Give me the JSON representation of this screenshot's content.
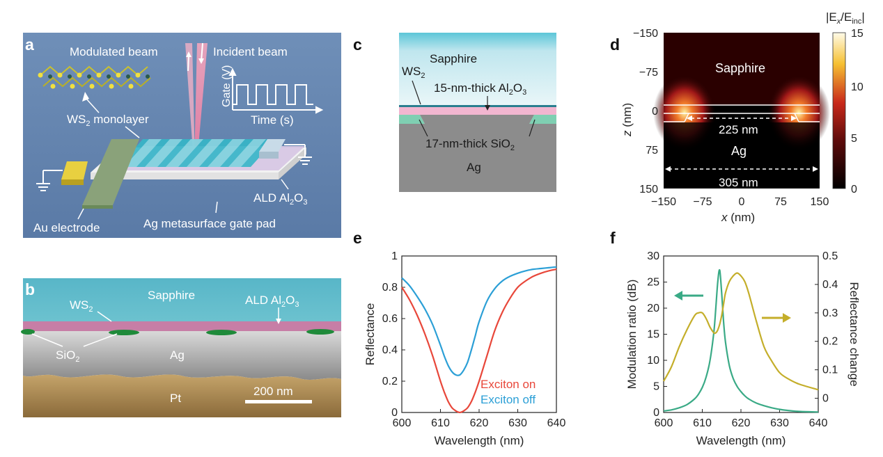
{
  "panels": {
    "a": {
      "letter": "a",
      "modulated_beam": "Modulated beam",
      "incident_beam": "Incident beam",
      "gate_axis": "Gate (V)",
      "time_axis": "Time (s)",
      "ws2": "WS",
      "ws2_rest": " monolayer",
      "ald_pre": "ALD Al",
      "ald_mid": "O",
      "au_electrode": "Au electrode",
      "ag_pad": "Ag metasurface gate pad"
    },
    "b": {
      "letter": "b",
      "sapphire": "Sapphire",
      "ws2": "WS",
      "ald_pre": "ALD Al",
      "ald_mid": "O",
      "sio2": "SiO",
      "ag": "Ag",
      "pt": "Pt",
      "scale_bar": "200 nm"
    },
    "c": {
      "letter": "c",
      "sapphire": "Sapphire",
      "ws2": "WS",
      "al2o3_pre": "15-nm-thick Al",
      "al2o3_mid": "O",
      "sio2_pre": "17-nm-thick SiO",
      "ag": "Ag"
    },
    "d": {
      "letter": "d",
      "sapphire": "Sapphire",
      "ag": "Ag",
      "dim_inner": "225 nm",
      "dim_outer": "305 nm",
      "colorbar_title_pre": "|E",
      "colorbar_title_mid": "/E",
      "colorbar_title_sub1": "x",
      "colorbar_title_sub2": "inc",
      "colorbar_title_end": "|",
      "colorbar_ticks": [
        "15",
        "10",
        "5",
        "0"
      ],
      "x_ticks": [
        "−150",
        "−75",
        "0",
        "75",
        "150"
      ],
      "z_ticks": [
        "−150",
        "−75",
        "0",
        "75",
        "150"
      ],
      "xlabel_var": "x",
      "xlabel_unit": " (nm)",
      "zlabel_var": "z",
      "zlabel_unit": " (nm)"
    },
    "e": {
      "letter": "e",
      "legend_on": "Exciton on",
      "legend_off": "Exciton off",
      "on_color": "#e8473a",
      "off_color": "#2b9fd6"
    },
    "f": {
      "letter": "f",
      "mod_color": "#3aaa86",
      "refl_color": "#c4ae2a"
    }
  },
  "chart_data": [
    {
      "panel": "e",
      "type": "line",
      "xlabel": "Wavelength (nm)",
      "ylabel": "Reflectance",
      "xlim": [
        600,
        640
      ],
      "ylim": [
        0,
        1
      ],
      "x_ticks": [
        600,
        610,
        620,
        630,
        640
      ],
      "y_ticks": [
        0,
        0.2,
        0.4,
        0.6,
        0.8,
        1
      ],
      "y_tick_labels": [
        "0",
        "0.2",
        "0.4",
        "0.6",
        "0.8",
        "1"
      ],
      "x": [
        600,
        602,
        604,
        606,
        608,
        610,
        611,
        612,
        613,
        614,
        615,
        616,
        617,
        618,
        619,
        620,
        622,
        624,
        626,
        628,
        630,
        632,
        634,
        636,
        638,
        640
      ],
      "series": [
        {
          "name": "Exciton on",
          "values": [
            0.8,
            0.72,
            0.62,
            0.5,
            0.36,
            0.2,
            0.13,
            0.07,
            0.03,
            0.01,
            0.0,
            0.01,
            0.03,
            0.07,
            0.13,
            0.2,
            0.36,
            0.52,
            0.64,
            0.73,
            0.8,
            0.84,
            0.87,
            0.89,
            0.905,
            0.915
          ]
        },
        {
          "name": "Exciton off",
          "values": [
            0.86,
            0.81,
            0.74,
            0.66,
            0.56,
            0.43,
            0.36,
            0.3,
            0.26,
            0.24,
            0.24,
            0.27,
            0.32,
            0.4,
            0.49,
            0.58,
            0.71,
            0.79,
            0.84,
            0.87,
            0.89,
            0.905,
            0.915,
            0.92,
            0.925,
            0.93
          ]
        }
      ]
    },
    {
      "panel": "f",
      "type": "line",
      "xlabel": "Wavelength (nm)",
      "ylabel": "Modulation ratio (dB)",
      "ylabel_right": "Reflectance change",
      "xlim": [
        600,
        640
      ],
      "ylim": [
        0,
        30
      ],
      "ylim_right": [
        -0.05,
        0.5
      ],
      "x_ticks": [
        600,
        610,
        620,
        630,
        640
      ],
      "y_ticks": [
        0,
        5,
        10,
        15,
        20,
        25,
        30
      ],
      "y_ticks_right": [
        0,
        0.1,
        0.2,
        0.3,
        0.4,
        0.5
      ],
      "x": [
        600,
        602,
        604,
        606,
        608,
        609,
        610,
        611,
        612,
        613,
        613.5,
        614,
        614.5,
        615,
        615.5,
        616,
        617,
        618,
        619,
        620,
        621,
        622,
        624,
        626,
        628,
        630,
        632,
        635,
        640
      ],
      "series": [
        {
          "name": "Modulation ratio",
          "axis": "left",
          "values": [
            0.3,
            0.5,
            0.9,
            1.5,
            2.6,
            3.5,
            4.8,
            6.8,
            10.0,
            15.5,
            20.0,
            25.0,
            27.3,
            23.0,
            17.5,
            13.5,
            9.0,
            6.5,
            5.0,
            4.0,
            3.2,
            2.6,
            1.8,
            1.3,
            0.9,
            0.6,
            0.4,
            0.2,
            0.1
          ]
        },
        {
          "name": "Reflectance change",
          "axis": "right",
          "values": [
            0.06,
            0.11,
            0.18,
            0.24,
            0.29,
            0.3,
            0.3,
            0.28,
            0.25,
            0.23,
            0.23,
            0.24,
            0.26,
            0.29,
            0.33,
            0.37,
            0.41,
            0.43,
            0.44,
            0.43,
            0.41,
            0.37,
            0.27,
            0.18,
            0.13,
            0.09,
            0.07,
            0.05,
            0.03
          ]
        }
      ]
    }
  ]
}
